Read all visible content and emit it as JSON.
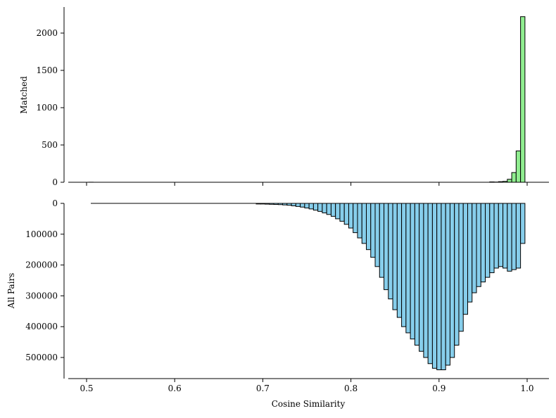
{
  "chart_data": [
    {
      "type": "bar",
      "title": "",
      "xlabel": "",
      "ylabel": "Matched",
      "color": "#90EE90",
      "edgecolor": "#000000",
      "xlim": [
        0.48,
        1.025
      ],
      "ylim": [
        0,
        2340
      ],
      "yticks": [
        0,
        500,
        1000,
        1500,
        2000
      ],
      "bin_width": 0.005,
      "x": [
        0.505,
        0.96,
        0.965,
        0.97,
        0.975,
        0.98,
        0.985,
        0.99,
        0.995
      ],
      "values": [
        1,
        5,
        3,
        8,
        12,
        40,
        130,
        420,
        2220
      ]
    },
    {
      "type": "bar",
      "title": "",
      "xlabel": "Cosine Similarity",
      "ylabel": "All Pairs",
      "color": "#87CEEB",
      "edgecolor": "#000000",
      "inverted_y": true,
      "xlim": [
        0.48,
        1.025
      ],
      "ylim": [
        0,
        570000
      ],
      "yticks": [
        0,
        100000,
        200000,
        300000,
        400000,
        500000
      ],
      "xticks": [
        0.5,
        0.6,
        0.7,
        0.8,
        0.9,
        1.0
      ],
      "bin_width": 0.005,
      "x": [
        0.695,
        0.7,
        0.705,
        0.71,
        0.715,
        0.72,
        0.725,
        0.73,
        0.735,
        0.74,
        0.745,
        0.75,
        0.755,
        0.76,
        0.765,
        0.77,
        0.775,
        0.78,
        0.785,
        0.79,
        0.795,
        0.8,
        0.805,
        0.81,
        0.815,
        0.82,
        0.825,
        0.83,
        0.835,
        0.84,
        0.845,
        0.85,
        0.855,
        0.86,
        0.865,
        0.87,
        0.875,
        0.88,
        0.885,
        0.89,
        0.895,
        0.9,
        0.905,
        0.91,
        0.915,
        0.92,
        0.925,
        0.93,
        0.935,
        0.94,
        0.945,
        0.95,
        0.955,
        0.96,
        0.965,
        0.97,
        0.975,
        0.98,
        0.985,
        0.99,
        0.995
      ],
      "values": [
        2000,
        2000,
        2500,
        3000,
        3500,
        4000,
        5000,
        6000,
        8000,
        10000,
        12000,
        15000,
        18000,
        22000,
        26000,
        31000,
        36000,
        42000,
        50000,
        58000,
        68000,
        80000,
        95000,
        112000,
        130000,
        150000,
        175000,
        205000,
        240000,
        280000,
        310000,
        345000,
        370000,
        400000,
        420000,
        440000,
        460000,
        480000,
        500000,
        520000,
        535000,
        540000,
        540000,
        525000,
        500000,
        460000,
        415000,
        360000,
        320000,
        290000,
        270000,
        255000,
        240000,
        225000,
        210000,
        205000,
        210000,
        220000,
        215000,
        210000,
        130000
      ]
    }
  ]
}
